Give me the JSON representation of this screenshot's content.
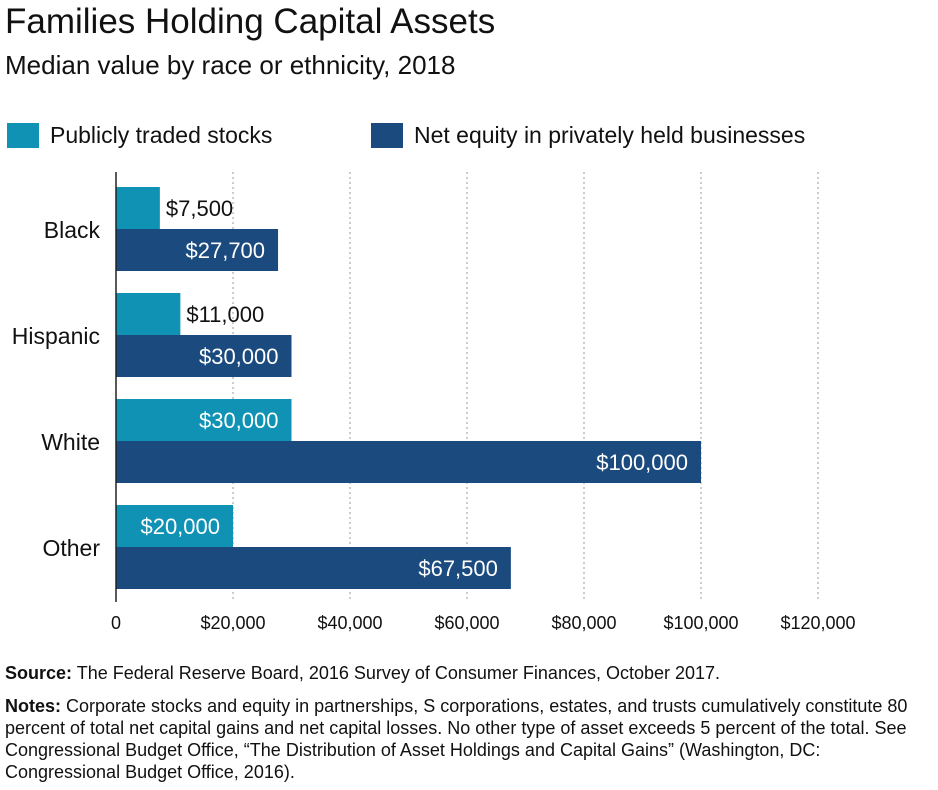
{
  "title": "Families Holding Capital Assets",
  "subtitle": "Median value by race or ethnicity, 2018",
  "colors": {
    "stocks": "#0f92b4",
    "equity": "#1b4a7e",
    "grid": "#bbbbbb",
    "axis": "#222222"
  },
  "chart_data": {
    "type": "bar",
    "orientation": "horizontal",
    "categories": [
      "Black",
      "Hispanic",
      "White",
      "Other"
    ],
    "series": [
      {
        "name": "Publicly traded stocks",
        "values": [
          7500,
          11000,
          30000,
          20000
        ],
        "labels": [
          "$7,500",
          "$11,000",
          "$30,000",
          "$20,000"
        ]
      },
      {
        "name": "Net equity in privately held businesses",
        "values": [
          27700,
          30000,
          100000,
          67500
        ],
        "labels": [
          "$27,700",
          "$30,000",
          "$100,000",
          "$67,500"
        ]
      }
    ],
    "xlim": [
      0,
      120000
    ],
    "xticks": [
      0,
      20000,
      40000,
      60000,
      80000,
      100000,
      120000
    ],
    "xtick_labels": [
      "0",
      "$20,000",
      "$40,000",
      "$60,000",
      "$80,000",
      "$100,000",
      "$120,000"
    ],
    "grid": "vertical dotted",
    "legend_position": "top"
  },
  "source_label": "Source:",
  "source_text": " The Federal Reserve Board, 2016 Survey of Consumer Finances, October 2017.",
  "notes_label": "Notes:",
  "notes_text": " Corporate stocks and equity in partnerships, S corporations, estates, and trusts cumulatively constitute 80 percent of total net capital gains and net capital losses. No other type of asset exceeds 5 percent of the total. See Congressional Budget Office, “The Distribution of Asset Holdings and Capital Gains” (Washington, DC: Congressional Budget Office, 2016)."
}
